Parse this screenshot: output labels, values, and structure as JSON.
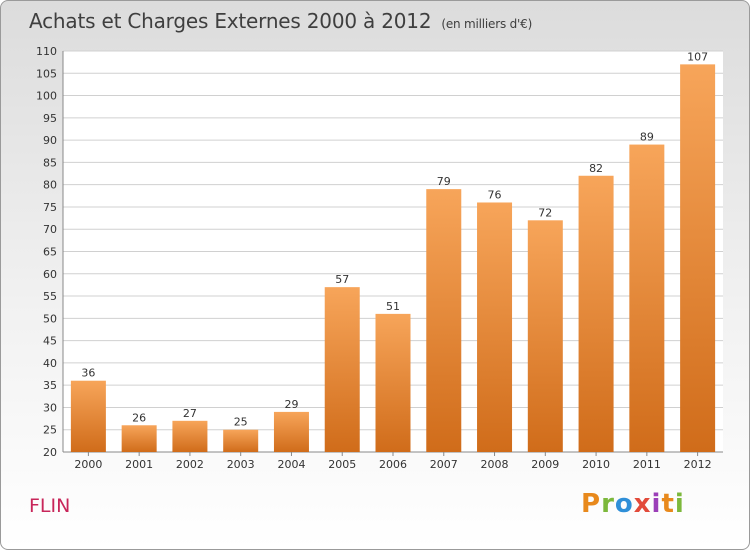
{
  "chart_data": {
    "type": "bar",
    "title": "Achats et Charges Externes 2000 à 2012",
    "subtitle": "(en milliers d'€)",
    "categories": [
      "2000",
      "2001",
      "2002",
      "2003",
      "2004",
      "2005",
      "2006",
      "2007",
      "2008",
      "2009",
      "2010",
      "2011",
      "2012"
    ],
    "values": [
      36,
      26,
      27,
      25,
      29,
      57,
      51,
      79,
      76,
      72,
      82,
      89,
      107
    ],
    "ylim": [
      20,
      110
    ],
    "yticks": [
      20,
      25,
      30,
      35,
      40,
      45,
      50,
      55,
      60,
      65,
      70,
      75,
      80,
      85,
      90,
      95,
      100,
      105,
      110
    ],
    "grid": true,
    "bar_color": "#f08a30",
    "bar_color_light": "#f7a55a",
    "bar_color_dark": "#d06c1a"
  },
  "footer": {
    "place": "FLIN",
    "logo_text": "Proxiti",
    "logo_letters": [
      "P",
      "r",
      "o",
      "x",
      "i",
      "t",
      "i"
    ],
    "logo_colors": [
      "#e8891c",
      "#7cb83b",
      "#2f8fd8",
      "#e24a3a",
      "#9b3fb8",
      "#e8891c",
      "#7cb83b"
    ]
  }
}
